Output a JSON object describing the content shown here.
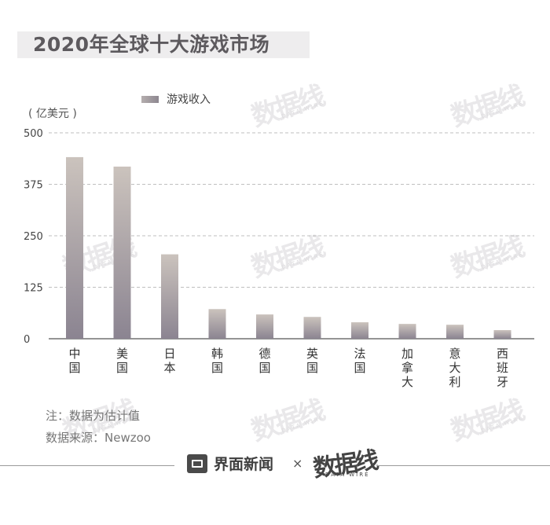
{
  "title": "2020年全球十大游戏市场",
  "unit_label": "( 亿美元 )",
  "chart_data": {
    "type": "bar",
    "categories": [
      "中国",
      "美国",
      "日本",
      "韩国",
      "德国",
      "英国",
      "法国",
      "加拿大",
      "意大利",
      "西班牙"
    ],
    "series": [
      {
        "name": "游戏收入",
        "values": [
          441,
          418,
          205,
          72,
          59,
          53,
          40,
          36,
          34,
          21
        ]
      }
    ],
    "ylim": [
      0,
      500
    ],
    "yticks": [
      0,
      125,
      250,
      375,
      500
    ],
    "ytick_labels": [
      "0",
      "125",
      "250",
      "375",
      "500"
    ],
    "grid": true,
    "gridline_style": "dashed",
    "legend_position": "top",
    "colors": {
      "bar_top": "#cbc3bd",
      "bar_bottom": "#8b8491",
      "grid": "#aaaaaa",
      "axis": "#555555"
    }
  },
  "notes": {
    "estimate": "注：数据为估计值",
    "source": "数据来源：Newzoo"
  },
  "watermark_text": "数据线",
  "watermark_sub": "DATA WIRE",
  "footer": {
    "brand": "界面新闻",
    "times": "×",
    "partner": "数据线",
    "partner_sub": "DATA WIRE"
  }
}
